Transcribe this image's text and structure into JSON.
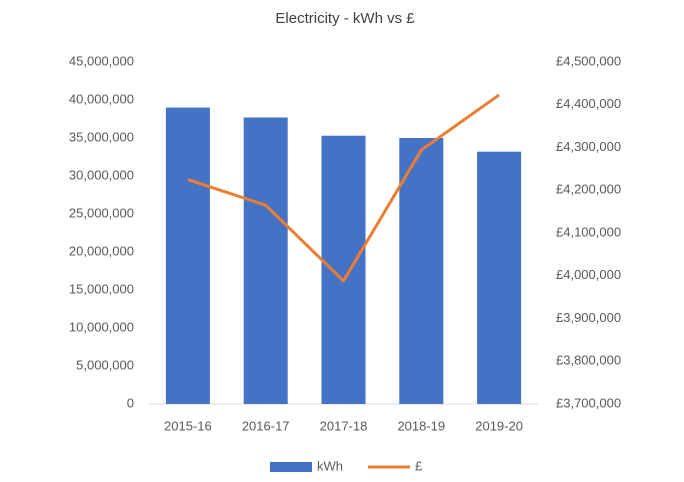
{
  "chart_data": {
    "type": "bar_line",
    "title": "Electricity - kWh vs £",
    "categories": [
      "2015-16",
      "2016-17",
      "2017-18",
      "2018-19",
      "2019-20"
    ],
    "series": [
      {
        "name": "kWh",
        "type": "bar",
        "color": "#4472c4",
        "values": [
          39000000,
          37700000,
          35300000,
          35000000,
          33200000
        ]
      },
      {
        "name": "£",
        "type": "line",
        "axis": "y2",
        "color": "#ed7d31",
        "values": [
          4225000,
          4165000,
          3988000,
          4294000,
          4423000
        ]
      }
    ],
    "ylim": [
      0,
      45000000
    ],
    "yticks": [
      0,
      {
        "value": 5000000,
        "label": "5,000,000"
      },
      {
        "value": 10000000,
        "label": "10,000,000"
      },
      {
        "value": 15000000,
        "label": "15,000,000"
      },
      {
        "value": 20000000,
        "label": "20,000,000"
      },
      {
        "value": 25000000,
        "label": "25,000,000"
      },
      {
        "value": 30000000,
        "label": "30,000,000"
      },
      {
        "value": 35000000,
        "label": "35,000,000"
      },
      {
        "value": 40000000,
        "label": "40,000,000"
      },
      {
        "value": 45000000,
        "label": "45,000,000"
      }
    ],
    "y2lim": [
      3700000,
      4500000
    ],
    "y2ticks": [
      {
        "value": 3700000,
        "label": "£3,700,000"
      },
      {
        "value": 3800000,
        "label": "£3,800,000"
      },
      {
        "value": 3900000,
        "label": "£3,900,000"
      },
      {
        "value": 4000000,
        "label": "£4,000,000"
      },
      {
        "value": 4100000,
        "label": "£4,100,000"
      },
      {
        "value": 4200000,
        "label": "£4,200,000"
      },
      {
        "value": 4300000,
        "label": "£4,300,000"
      },
      {
        "value": 4400000,
        "label": "£4,400,000"
      },
      {
        "value": 4500000,
        "label": "£4,500,000"
      }
    ],
    "grid": false,
    "legend": "bottom"
  }
}
